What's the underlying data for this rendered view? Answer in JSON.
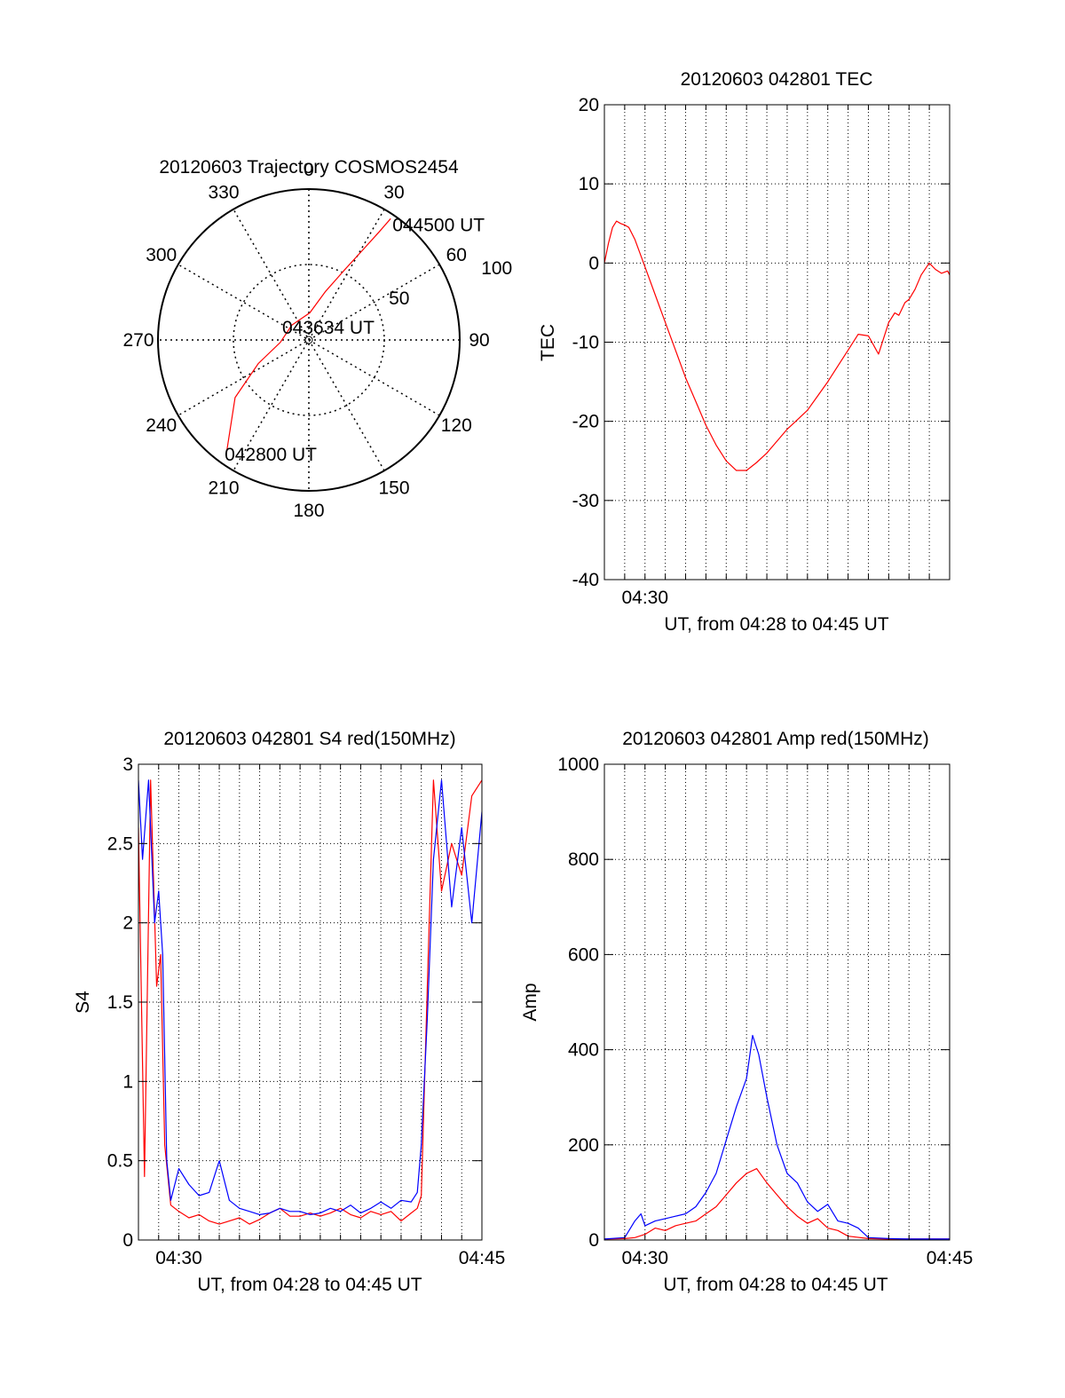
{
  "page": {
    "background": "#ffffff"
  },
  "chart_data": [
    {
      "id": "trajectory",
      "type": "polar",
      "title": "20120603 Trajectory COSMOS2454",
      "azimuth_labels": [
        {
          "text": "0",
          "az": 0
        },
        {
          "text": "30",
          "az": 30
        },
        {
          "text": "60",
          "az": 60
        },
        {
          "text": "90",
          "az": 90
        },
        {
          "text": "120",
          "az": 120
        },
        {
          "text": "150",
          "az": 150
        },
        {
          "text": "180",
          "az": 180
        },
        {
          "text": "210",
          "az": 210
        },
        {
          "text": "240",
          "az": 240
        },
        {
          "text": "270",
          "az": 270
        },
        {
          "text": "300",
          "az": 300
        },
        {
          "text": "330",
          "az": 330
        }
      ],
      "radial_range": [
        0,
        100
      ],
      "radial_rings": [
        50,
        100
      ],
      "radial_labels": [
        {
          "text": "50",
          "r": 50
        },
        {
          "text": "100",
          "r": 100
        }
      ],
      "series": [
        {
          "color": "#ff0000",
          "points": [
            {
              "az": 34,
              "r": 97
            },
            {
              "az": 33,
              "r": 85
            },
            {
              "az": 31,
              "r": 70
            },
            {
              "az": 27,
              "r": 52
            },
            {
              "az": 19,
              "r": 34
            },
            {
              "az": 2,
              "r": 18
            },
            {
              "az": 311,
              "r": 15
            },
            {
              "az": 265,
              "r": 19
            },
            {
              "az": 245,
              "r": 37
            },
            {
              "az": 232,
              "r": 62
            },
            {
              "az": 216,
              "r": 93
            }
          ]
        }
      ],
      "annotations": [
        {
          "text": "044500 UT",
          "az": 34,
          "r": 97
        },
        {
          "text": "043634 UT",
          "az": 0,
          "r": 0
        },
        {
          "text": "042800 UT",
          "az": 216,
          "r": 93
        }
      ]
    },
    {
      "id": "tec",
      "type": "line",
      "title": "20120603 042801 TEC",
      "xlabel": "UT, from 04:28 to 04:45 UT",
      "ylabel": "TEC",
      "xlim": [
        28,
        45
      ],
      "ylim": [
        -40,
        20
      ],
      "x_ticks": [
        {
          "value": 30,
          "label": "04:30"
        }
      ],
      "y_ticks": [
        {
          "value": -40,
          "label": "-40"
        },
        {
          "value": -30,
          "label": "-30"
        },
        {
          "value": -20,
          "label": "-20"
        },
        {
          "value": -10,
          "label": "-10"
        },
        {
          "value": 0,
          "label": "0"
        },
        {
          "value": 10,
          "label": "10"
        },
        {
          "value": 20,
          "label": "20"
        }
      ],
      "grid_x": [
        29,
        30,
        31,
        32,
        33,
        34,
        35,
        36,
        37,
        38,
        39,
        40,
        41,
        42,
        43,
        44
      ],
      "grid_y": [
        -30,
        -20,
        -10,
        0,
        10
      ],
      "grid": true,
      "series": [
        {
          "color": "#ff0000",
          "x": [
            28.0,
            28.2,
            28.4,
            28.6,
            28.8,
            29.0,
            29.2,
            29.5,
            30.0,
            30.5,
            31.0,
            31.5,
            32.0,
            32.5,
            33.0,
            33.5,
            34.0,
            34.5,
            35.0,
            35.5,
            36.0,
            36.5,
            37.0,
            37.5,
            38.0,
            38.5,
            39.0,
            39.5,
            40.0,
            40.5,
            41.0,
            41.5,
            42.0,
            42.3,
            42.5,
            42.8,
            43.0,
            43.3,
            43.6,
            44.0,
            44.3,
            44.6,
            44.9,
            45.0
          ],
          "y": [
            0,
            2.5,
            4.5,
            5.3,
            5.0,
            4.8,
            4.5,
            3.0,
            -0.5,
            -4.0,
            -7.5,
            -11.0,
            -14.5,
            -17.5,
            -20.5,
            -23.0,
            -25.0,
            -26.2,
            -26.2,
            -25.2,
            -24.0,
            -22.5,
            -21.0,
            -19.8,
            -18.6,
            -16.8,
            -15.0,
            -13.0,
            -11.0,
            -9.0,
            -9.2,
            -11.5,
            -7.5,
            -6.3,
            -6.6,
            -5.0,
            -4.6,
            -3.3,
            -1.5,
            0.0,
            -0.8,
            -1.3,
            -1.0,
            -1.5
          ]
        }
      ]
    },
    {
      "id": "s4",
      "type": "line",
      "title": "20120603 042801 S4 red(150MHz)",
      "xlabel": "UT, from 04:28 to 04:45 UT",
      "ylabel": "S4",
      "xlim": [
        28,
        45
      ],
      "ylim": [
        0,
        3
      ],
      "x_ticks": [
        {
          "value": 30,
          "label": "04:30"
        },
        {
          "value": 45,
          "label": "04:45"
        }
      ],
      "y_ticks": [
        {
          "value": 0,
          "label": "0"
        },
        {
          "value": 0.5,
          "label": "0.5"
        },
        {
          "value": 1,
          "label": "1"
        },
        {
          "value": 1.5,
          "label": "1.5"
        },
        {
          "value": 2,
          "label": "2"
        },
        {
          "value": 2.5,
          "label": "2.5"
        },
        {
          "value": 3,
          "label": "3"
        }
      ],
      "grid_x": [
        29,
        30,
        31,
        32,
        33,
        34,
        35,
        36,
        37,
        38,
        39,
        40,
        41,
        42,
        43,
        44
      ],
      "grid_y": [
        0.5,
        1,
        1.5,
        2,
        2.5
      ],
      "grid": true,
      "series": [
        {
          "color": "#ff0000",
          "x": [
            28.0,
            28.3,
            28.6,
            28.9,
            29.1,
            29.3,
            29.6,
            30.0,
            30.5,
            31.0,
            31.5,
            32.0,
            32.5,
            33.0,
            33.5,
            34.0,
            34.5,
            35.0,
            35.5,
            36.0,
            36.5,
            37.0,
            37.5,
            38.0,
            38.5,
            39.0,
            39.5,
            40.0,
            40.5,
            41.0,
            41.5,
            41.8,
            42.0,
            42.3,
            42.6,
            43.0,
            43.5,
            44.0,
            44.5,
            45.0
          ],
          "y": [
            2.6,
            0.4,
            2.9,
            1.6,
            1.8,
            0.6,
            0.22,
            0.18,
            0.14,
            0.16,
            0.12,
            0.1,
            0.12,
            0.14,
            0.1,
            0.13,
            0.17,
            0.2,
            0.15,
            0.15,
            0.17,
            0.15,
            0.17,
            0.2,
            0.16,
            0.14,
            0.18,
            0.16,
            0.18,
            0.12,
            0.17,
            0.2,
            0.28,
            1.6,
            2.9,
            2.2,
            2.5,
            2.3,
            2.8,
            2.9
          ]
        },
        {
          "color": "#0000ff",
          "x": [
            28.0,
            28.2,
            28.5,
            28.8,
            29.0,
            29.2,
            29.4,
            29.6,
            30.0,
            30.5,
            31.0,
            31.5,
            32.0,
            32.5,
            33.0,
            33.5,
            34.0,
            34.5,
            35.0,
            35.5,
            36.0,
            36.5,
            37.0,
            37.5,
            38.0,
            38.5,
            39.0,
            39.5,
            40.0,
            40.5,
            41.0,
            41.5,
            41.8,
            42.0,
            42.3,
            42.6,
            43.0,
            43.5,
            44.0,
            44.5,
            45.0
          ],
          "y": [
            2.9,
            2.4,
            2.9,
            2.0,
            2.2,
            1.8,
            0.5,
            0.25,
            0.45,
            0.35,
            0.28,
            0.3,
            0.5,
            0.25,
            0.2,
            0.18,
            0.16,
            0.17,
            0.2,
            0.18,
            0.18,
            0.16,
            0.17,
            0.2,
            0.18,
            0.22,
            0.17,
            0.2,
            0.24,
            0.2,
            0.25,
            0.24,
            0.3,
            0.6,
            1.4,
            2.4,
            2.9,
            2.1,
            2.6,
            2.0,
            2.7
          ]
        }
      ]
    },
    {
      "id": "amp",
      "type": "line",
      "title": "20120603 042801 Amp red(150MHz)",
      "xlabel": "UT, from 04:28 to 04:45 UT",
      "ylabel": "Amp",
      "xlim": [
        28,
        45
      ],
      "ylim": [
        0,
        1000
      ],
      "x_ticks": [
        {
          "value": 30,
          "label": "04:30"
        },
        {
          "value": 45,
          "label": "04:45"
        }
      ],
      "y_ticks": [
        {
          "value": 0,
          "label": "0"
        },
        {
          "value": 200,
          "label": "200"
        },
        {
          "value": 400,
          "label": "400"
        },
        {
          "value": 600,
          "label": "600"
        },
        {
          "value": 800,
          "label": "800"
        },
        {
          "value": 1000,
          "label": "1000"
        }
      ],
      "grid_x": [
        29,
        30,
        31,
        32,
        33,
        34,
        35,
        36,
        37,
        38,
        39,
        40,
        41,
        42,
        43,
        44
      ],
      "grid_y": [
        200,
        400,
        600,
        800
      ],
      "grid": true,
      "series": [
        {
          "color": "#ff0000",
          "x": [
            28.0,
            29.0,
            29.5,
            30.0,
            30.5,
            31.0,
            31.5,
            32.0,
            32.5,
            33.0,
            33.5,
            34.0,
            34.5,
            35.0,
            35.5,
            36.0,
            36.5,
            37.0,
            37.5,
            38.0,
            38.5,
            39.0,
            39.5,
            40.0,
            41.0,
            42.0,
            43.0,
            44.0,
            45.0
          ],
          "y": [
            2,
            3,
            5,
            12,
            25,
            20,
            30,
            35,
            40,
            55,
            70,
            95,
            120,
            140,
            150,
            120,
            95,
            70,
            50,
            35,
            45,
            25,
            20,
            8,
            3,
            2,
            2,
            2,
            2
          ]
        },
        {
          "color": "#0000ff",
          "x": [
            28.0,
            29.0,
            29.5,
            29.8,
            30.0,
            30.5,
            31.0,
            31.5,
            32.0,
            32.5,
            33.0,
            33.5,
            34.0,
            34.5,
            35.0,
            35.3,
            35.6,
            36.0,
            36.5,
            37.0,
            37.5,
            38.0,
            38.5,
            39.0,
            39.5,
            40.0,
            40.5,
            41.0,
            42.0,
            43.0,
            44.0,
            45.0
          ],
          "y": [
            2,
            5,
            40,
            55,
            30,
            40,
            45,
            50,
            55,
            70,
            100,
            140,
            210,
            280,
            340,
            430,
            390,
            300,
            200,
            140,
            120,
            80,
            60,
            75,
            40,
            35,
            25,
            5,
            3,
            2,
            2,
            2
          ]
        }
      ]
    }
  ]
}
